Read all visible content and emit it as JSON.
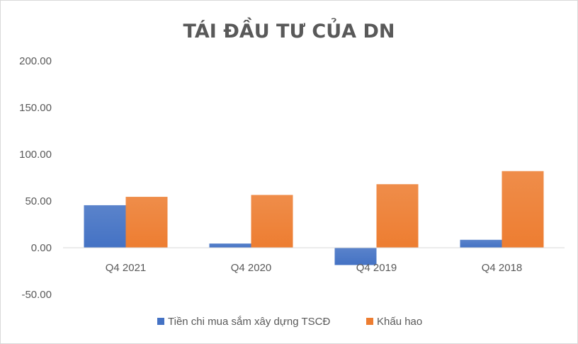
{
  "chart_data": {
    "type": "bar",
    "title": "TÁI ĐẦU TƯ CỦA DN",
    "categories": [
      "Q4 2021",
      "Q4 2020",
      "Q4 2019",
      "Q4 2018"
    ],
    "series": [
      {
        "name": "Tiền chi mua sắm xây dựng TSCĐ",
        "values": [
          45.5,
          4.5,
          -18.5,
          8.5
        ],
        "color": "#4472C4"
      },
      {
        "name": "Khấu hao",
        "values": [
          54.5,
          56.5,
          68,
          82
        ],
        "color": "#ED7D31"
      }
    ],
    "ylim": [
      -50,
      200
    ],
    "yticks": [
      200,
      150,
      100,
      50,
      0,
      -50
    ],
    "ytick_labels": [
      "200.00",
      "150.00",
      "100.00",
      "50.00",
      "0.00",
      "-50.00"
    ],
    "grid": false,
    "legend_position": "bottom"
  }
}
